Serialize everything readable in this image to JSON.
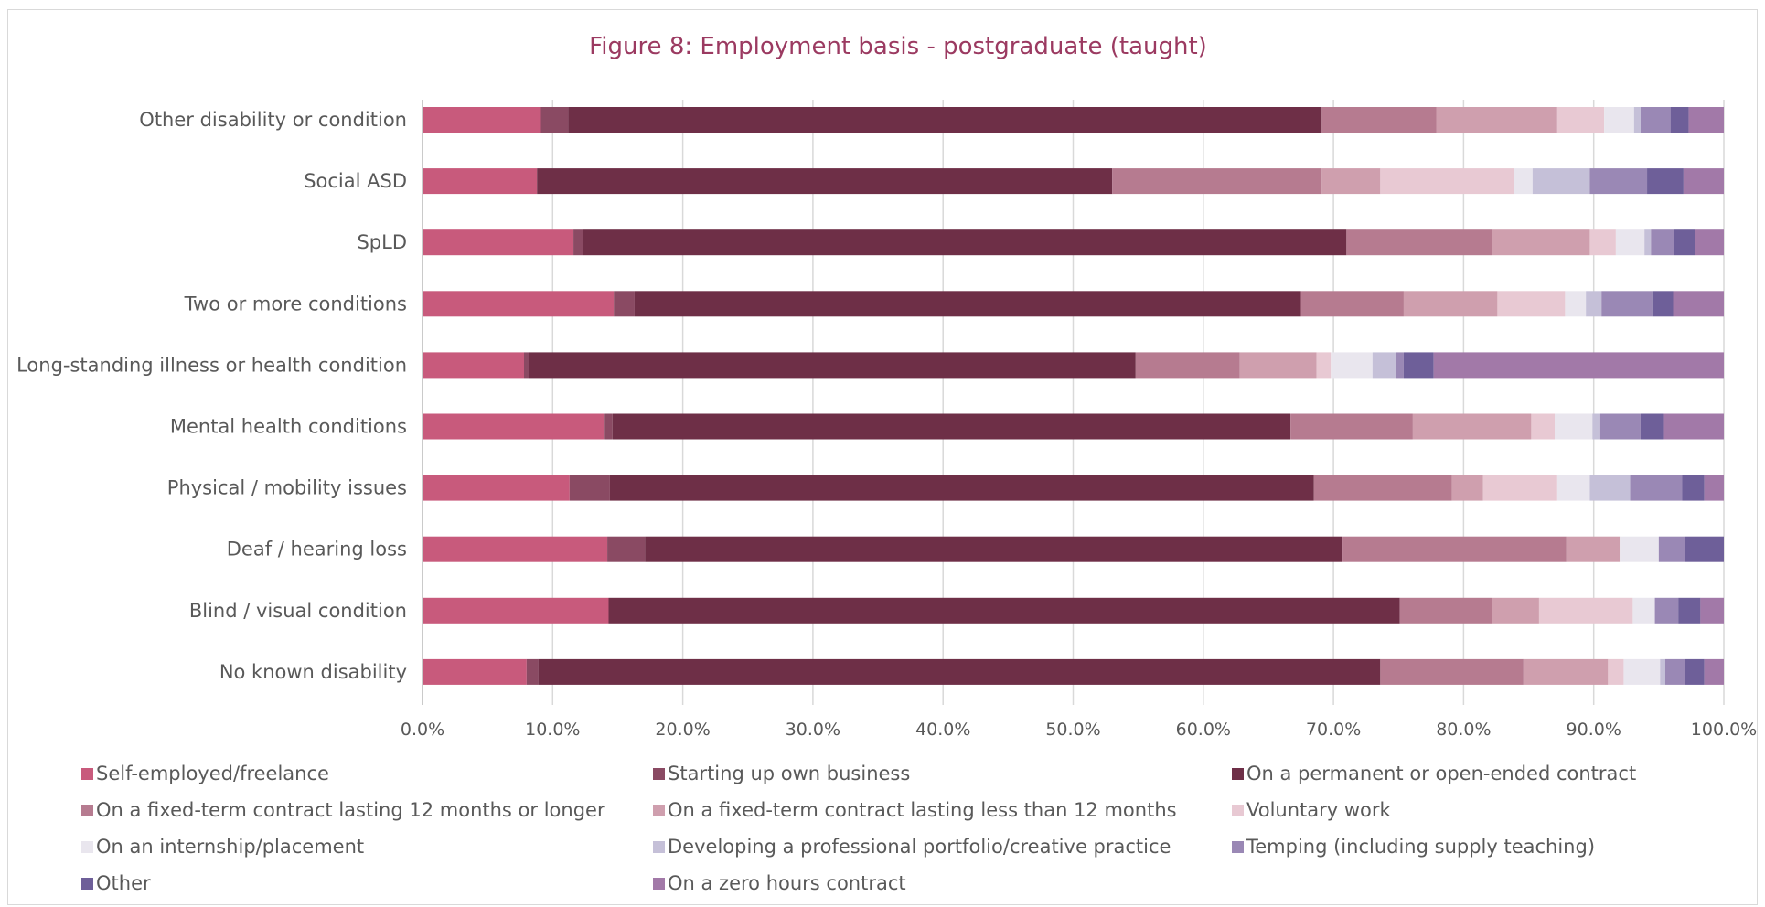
{
  "chart_data": {
    "type": "bar",
    "orientation": "horizontal",
    "stacked": "100%",
    "title": "Figure 8: Employment basis - postgraduate (taught)",
    "xlabel": "",
    "ylabel": "",
    "xlim": [
      0,
      100
    ],
    "x_ticks": [
      "0.0%",
      "10.0%",
      "20.0%",
      "30.0%",
      "40.0%",
      "50.0%",
      "60.0%",
      "70.0%",
      "80.0%",
      "90.0%",
      "100.0%"
    ],
    "grid": "vertical",
    "legend_position": "bottom",
    "categories": [
      "Other disability or condition",
      "Social ASD",
      "SpLD",
      "Two or more conditions",
      "Long-standing illness or health condition",
      "Mental health conditions",
      "Physical / mobility issues",
      "Deaf / hearing loss",
      "Blind / visual condition",
      "No known disability"
    ],
    "series": [
      {
        "name": "Self-employed/freelance",
        "color": "#c85a7c",
        "values": [
          9.1,
          8.8,
          11.6,
          14.7,
          7.8,
          14.0,
          11.3,
          14.2,
          14.3,
          8.0
        ]
      },
      {
        "name": "Starting up own business",
        "color": "#8a4a63",
        "values": [
          2.1,
          0.0,
          0.7,
          1.6,
          0.4,
          0.6,
          3.1,
          2.9,
          0.0,
          0.9
        ]
      },
      {
        "name": "On a permanent or open-ended contract",
        "color": "#6e2f47",
        "values": [
          57.9,
          44.2,
          58.7,
          51.2,
          46.6,
          52.1,
          54.1,
          53.6,
          60.8,
          64.7
        ]
      },
      {
        "name": "On a fixed-term contract lasting 12 months or longer",
        "color": "#b67b90",
        "values": [
          8.8,
          16.1,
          11.2,
          7.9,
          8.0,
          9.4,
          10.6,
          17.2,
          7.1,
          11.0
        ]
      },
      {
        "name": "On a fixed-term contract lasting less than 12 months",
        "color": "#cf9fae",
        "values": [
          9.3,
          4.5,
          7.5,
          7.2,
          5.9,
          9.1,
          2.4,
          4.1,
          3.6,
          6.5
        ]
      },
      {
        "name": "Voluntary work",
        "color": "#e8c9d3",
        "values": [
          3.6,
          10.3,
          2.0,
          5.2,
          1.1,
          1.8,
          5.7,
          0.0,
          7.2,
          1.2
        ]
      },
      {
        "name": "On an internship/placement",
        "color": "#e9e6ee",
        "values": [
          2.3,
          1.4,
          2.2,
          1.6,
          3.2,
          2.9,
          2.5,
          3.0,
          1.7,
          2.8
        ]
      },
      {
        "name": "Developing a professional portfolio/creative practice",
        "color": "#c5c0d8",
        "values": [
          0.5,
          4.4,
          0.5,
          1.2,
          1.8,
          0.6,
          3.1,
          0.0,
          0.0,
          0.4
        ]
      },
      {
        "name": "Temping (including supply teaching)",
        "color": "#9a88b5",
        "values": [
          2.3,
          4.4,
          1.8,
          3.9,
          0.6,
          3.1,
          4.0,
          2.0,
          1.8,
          1.5
        ]
      },
      {
        "name": "Other",
        "color": "#6e5f99",
        "values": [
          1.4,
          2.8,
          1.6,
          1.6,
          2.3,
          1.8,
          1.7,
          3.0,
          1.7,
          1.5
        ]
      },
      {
        "name": "On a zero hours contract",
        "color": "#a279a8",
        "values": [
          2.7,
          3.1,
          2.2,
          3.9,
          22.3,
          4.6,
          1.5,
          0.0,
          1.8,
          1.5
        ]
      }
    ]
  }
}
